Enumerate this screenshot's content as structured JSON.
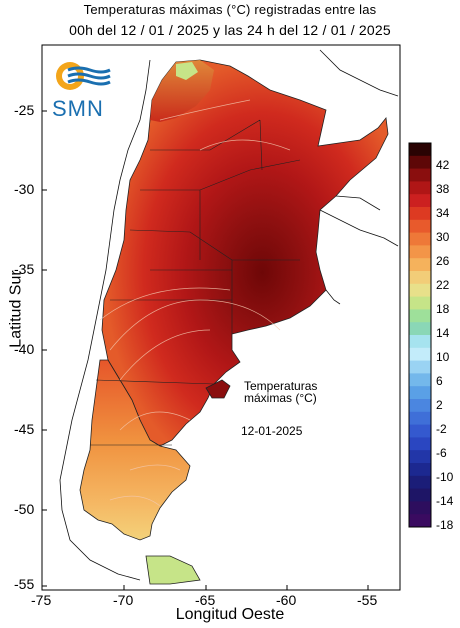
{
  "title": {
    "line1": "Temperaturas máximas (°C) registradas entre las",
    "line2": "00h del 12 / 01 / 2025 y las 24 h del 12 / 01 / 2025"
  },
  "logo": {
    "text": "SMN",
    "icon": "smn-sun-wave-logo"
  },
  "axes": {
    "ylabel": "Latitud Sur",
    "xlabel": "Longitud Oeste",
    "yticks": [
      "-25",
      "-30",
      "-35",
      "-40",
      "-45",
      "-50",
      "-55"
    ],
    "xticks": [
      "-75",
      "-70",
      "-65",
      "-60",
      "-55"
    ]
  },
  "annotation": {
    "line1": "Temperaturas",
    "line2": "máximas (°C)",
    "date": "12-01-2025"
  },
  "colorbar": {
    "labels": [
      "42",
      "38",
      "34",
      "30",
      "26",
      "22",
      "18",
      "14",
      "10",
      "6",
      "2",
      "-2",
      "-6",
      "-10",
      "-14",
      "-18"
    ],
    "colors": [
      "#2a0303",
      "#5e0707",
      "#8a0e0e",
      "#b01616",
      "#cc2020",
      "#dd3a22",
      "#e85a2c",
      "#ee7838",
      "#f39548",
      "#f5b25c",
      "#f2cd78",
      "#e8e08a",
      "#c6e488",
      "#9ee09a",
      "#8ad7b6",
      "#a6e3ef",
      "#c3ecfa",
      "#9ad3f3",
      "#74b8eb",
      "#5aa0e6",
      "#4b86e0",
      "#3f6fd8",
      "#3459cf",
      "#2a46c1",
      "#2236a8",
      "#1c2890",
      "#1b1d78",
      "#1e1566",
      "#2d0e5e",
      "#3a0b60"
    ]
  }
}
